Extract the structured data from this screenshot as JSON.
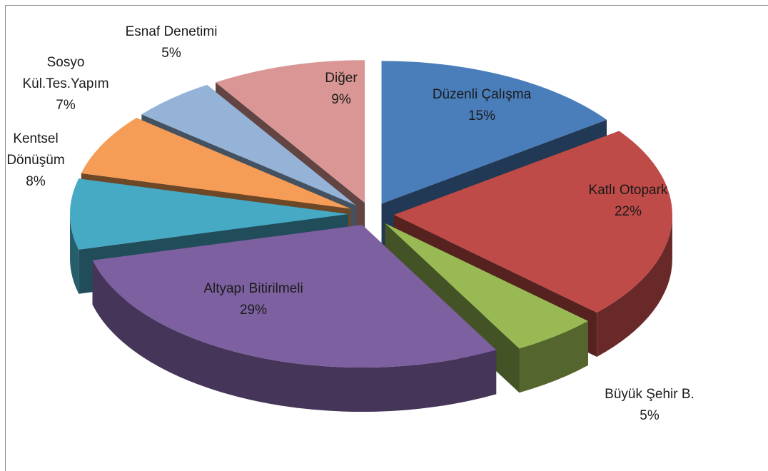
{
  "chart_data": {
    "type": "pie",
    "categories": [
      "Düzenli Çalışma",
      "Katlı Otopark",
      "Büyük Şehir B.",
      "Altyapı Bitirilmeli",
      "Kentsel Dönüşüm",
      "Sosyo Kül.Tes.Yapım",
      "Esnaf Denetimi",
      "Diğer"
    ],
    "values": [
      15,
      22,
      5,
      29,
      8,
      7,
      5,
      9
    ],
    "value_labels": [
      "15%",
      "22%",
      "5%",
      "29%",
      "8%",
      "7%",
      "5%",
      "9%"
    ],
    "colors": [
      "#4a7ebb",
      "#be4b48",
      "#98b954",
      "#7d60a0",
      "#46aac5",
      "#f59d56",
      "#95b3d7",
      "#d99694"
    ]
  }
}
